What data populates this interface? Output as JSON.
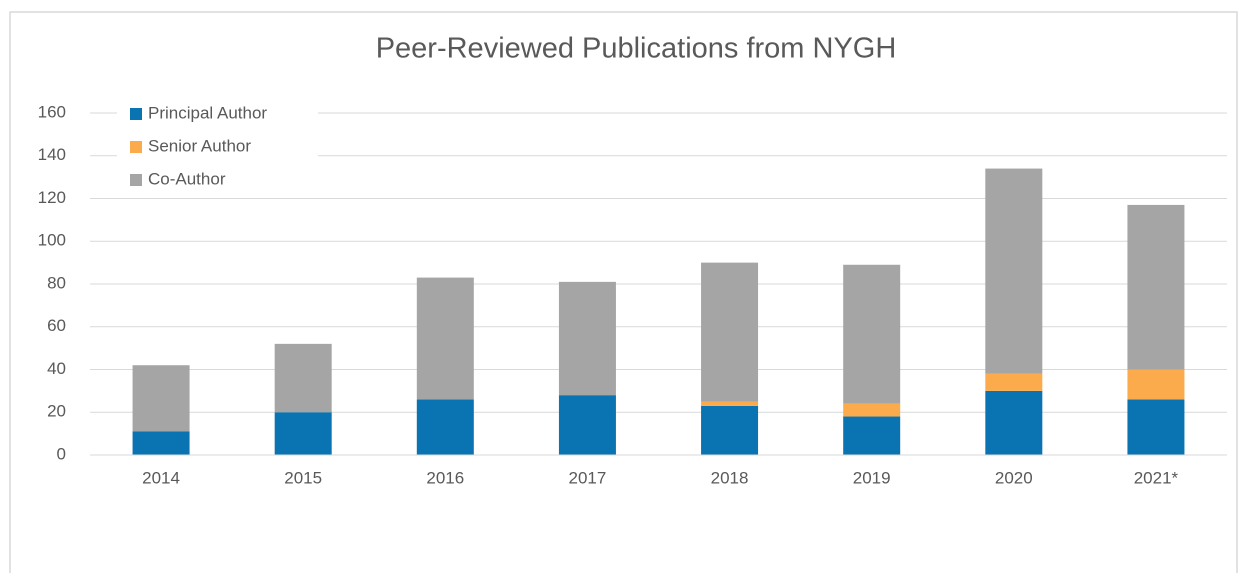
{
  "chart_data": {
    "type": "stacked-bar",
    "title": "Peer-Reviewed Publications from NYGH",
    "categories": [
      "2014",
      "2015",
      "2016",
      "2017",
      "2018",
      "2019",
      "2020",
      "2021*"
    ],
    "series": [
      {
        "name": "Principal Author",
        "color": "#0a74b3",
        "values": [
          11,
          20,
          26,
          28,
          23,
          18,
          30,
          26
        ]
      },
      {
        "name": "Senior Author",
        "color": "#fbab4b",
        "values": [
          0,
          0,
          0,
          0,
          2,
          6,
          8,
          14
        ]
      },
      {
        "name": "Co-Author",
        "color": "#a5a5a5",
        "values": [
          31,
          32,
          57,
          53,
          65,
          65,
          96,
          77
        ]
      }
    ],
    "ylim": [
      0,
      160
    ],
    "yticks": [
      0,
      20,
      40,
      60,
      80,
      100,
      120,
      140,
      160
    ],
    "grid": true,
    "legend": "top-left"
  }
}
